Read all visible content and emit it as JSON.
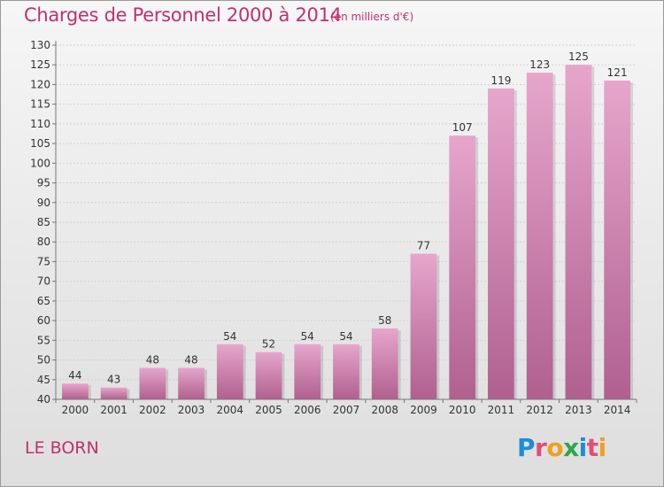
{
  "chart_data": {
    "type": "bar",
    "title": "Charges de Personnel 2000 à 2014",
    "subtitle": "(en milliers d'€)",
    "categories": [
      "2000",
      "2001",
      "2002",
      "2003",
      "2004",
      "2005",
      "2006",
      "2007",
      "2008",
      "2009",
      "2010",
      "2011",
      "2012",
      "2013",
      "2014"
    ],
    "values": [
      44,
      43,
      48,
      48,
      54,
      52,
      54,
      54,
      58,
      77,
      107,
      119,
      123,
      125,
      121
    ],
    "ylim": [
      40,
      130
    ],
    "yticks": [
      40,
      45,
      50,
      55,
      60,
      65,
      70,
      75,
      80,
      85,
      90,
      95,
      100,
      105,
      110,
      115,
      120,
      125,
      130
    ],
    "grid": true,
    "bar_color": "#d987b7"
  },
  "location": "LE BORN",
  "logo": {
    "text": "Proxiti",
    "letters": [
      {
        "ch": "P",
        "color": "#1a8fd6"
      },
      {
        "ch": "r",
        "color": "#e04e7a"
      },
      {
        "ch": "o",
        "color": "#f0a020"
      },
      {
        "ch": "x",
        "color": "#2aa84a"
      },
      {
        "ch": "i",
        "color": "#1a8fd6"
      },
      {
        "ch": "t",
        "color": "#e04e7a"
      },
      {
        "ch": "i",
        "color": "#f0a020"
      }
    ]
  }
}
